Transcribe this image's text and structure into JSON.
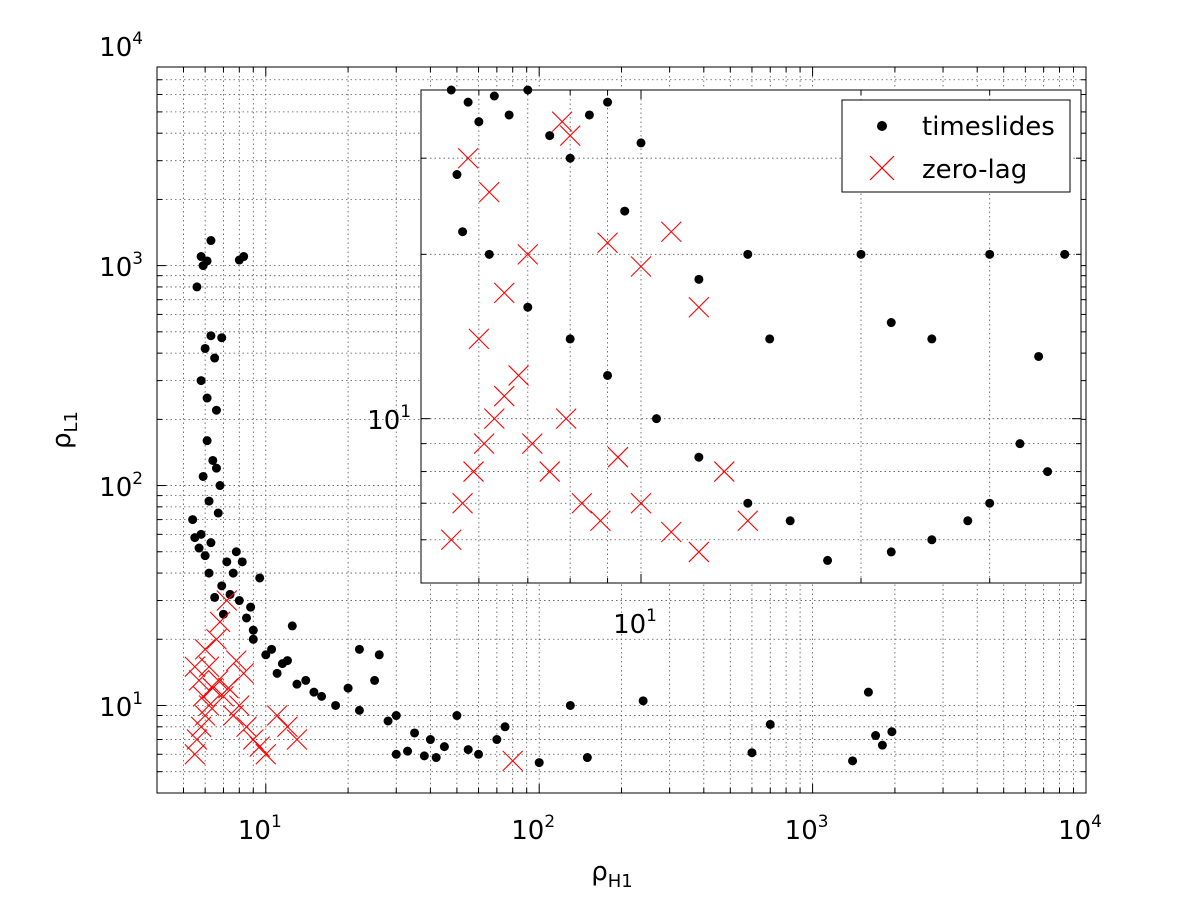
{
  "chart_data": [
    {
      "type": "scatter",
      "name": "main",
      "xscale": "log",
      "yscale": "log",
      "xlim": [
        4,
        10000
      ],
      "ylim": [
        4,
        8000
      ],
      "xlabel": {
        "base": "ρ",
        "sub": "H1"
      },
      "ylabel": {
        "base": "ρ",
        "sub": "L1"
      },
      "grid": true,
      "xticks": [
        {
          "base": "10",
          "exp": "1",
          "value": 10
        },
        {
          "base": "10",
          "exp": "2",
          "value": 100
        },
        {
          "base": "10",
          "exp": "3",
          "value": 1000
        },
        {
          "base": "10",
          "exp": "4",
          "value": 10000
        }
      ],
      "yticks": [
        {
          "base": "10",
          "exp": "1",
          "value": 10
        },
        {
          "base": "10",
          "exp": "2",
          "value": 100
        },
        {
          "base": "10",
          "exp": "3",
          "value": 1000
        },
        {
          "base": "10",
          "exp": "4",
          "value": 10000
        }
      ],
      "series": [
        {
          "name": "timeslides",
          "marker": "dot",
          "color": "#000000",
          "points": [
            [
              5.6,
              800
            ],
            [
              5.8,
              1100
            ],
            [
              5.9,
              1000
            ],
            [
              6.3,
              1300
            ],
            [
              6.1,
              1050
            ],
            [
              8.0,
              1060
            ],
            [
              8.3,
              1100
            ],
            [
              6.0,
              420
            ],
            [
              6.3,
              480
            ],
            [
              6.9,
              470
            ],
            [
              6.5,
              380
            ],
            [
              5.8,
              300
            ],
            [
              6.1,
              250
            ],
            [
              6.6,
              220
            ],
            [
              6.1,
              160
            ],
            [
              6.4,
              130
            ],
            [
              6.6,
              120
            ],
            [
              5.9,
              110
            ],
            [
              6.8,
              100
            ],
            [
              6.2,
              85
            ],
            [
              6.7,
              75
            ],
            [
              5.8,
              60
            ],
            [
              6.3,
              55
            ],
            [
              7.2,
              45
            ],
            [
              7.6,
              40
            ],
            [
              6.9,
              35
            ],
            [
              8.0,
              30
            ],
            [
              8.5,
              25
            ],
            [
              9.0,
              22
            ],
            [
              10.5,
              18
            ],
            [
              12.0,
              16
            ],
            [
              14.0,
              13
            ],
            [
              16.0,
              11
            ],
            [
              20.0,
              12
            ],
            [
              25.0,
              13
            ],
            [
              30.0,
              9
            ],
            [
              22.0,
              18
            ],
            [
              26.0,
              17
            ],
            [
              12.5,
              23
            ],
            [
              9.5,
              38
            ],
            [
              8.2,
              45
            ],
            [
              7.8,
              50
            ],
            [
              11.0,
              14
            ],
            [
              13.0,
              12.5
            ],
            [
              15.0,
              11.5
            ],
            [
              18.0,
              10
            ],
            [
              22.0,
              9.5
            ],
            [
              28.0,
              8.5
            ],
            [
              35.0,
              7.5
            ],
            [
              40.0,
              7.0
            ],
            [
              45.0,
              6.5
            ],
            [
              55.0,
              6.3
            ],
            [
              60.0,
              6.0
            ],
            [
              70.0,
              7.0
            ],
            [
              50.0,
              9.0
            ],
            [
              75.0,
              8.0
            ],
            [
              100.0,
              5.5
            ],
            [
              130.0,
              10.0
            ],
            [
              150.0,
              5.8
            ],
            [
              240.0,
              10.5
            ],
            [
              600.0,
              6.1
            ],
            [
              700.0,
              8.2
            ],
            [
              1400.0,
              5.6
            ],
            [
              1600.0,
              11.5
            ],
            [
              1700.0,
              7.3
            ],
            [
              1800.0,
              6.6
            ],
            [
              1950.0,
              7.6
            ],
            [
              30.0,
              6.0
            ],
            [
              33.0,
              6.2
            ],
            [
              38.0,
              5.9
            ],
            [
              42.0,
              5.8
            ],
            [
              9.0,
              20.0
            ],
            [
              10.0,
              17.0
            ],
            [
              11.5,
              15.5
            ],
            [
              8.8,
              28.0
            ],
            [
              7.4,
              32.0
            ],
            [
              7.0,
              26.0
            ],
            [
              6.5,
              31.0
            ],
            [
              6.2,
              40.0
            ],
            [
              6.0,
              48.0
            ],
            [
              5.7,
              52.0
            ],
            [
              5.5,
              58.0
            ],
            [
              5.4,
              70.0
            ]
          ]
        },
        {
          "name": "zero-lag",
          "marker": "x",
          "color": "#ff0000",
          "points": [
            [
              5.5,
              6
            ],
            [
              5.6,
              7
            ],
            [
              5.8,
              8
            ],
            [
              6.0,
              9
            ],
            [
              6.2,
              10
            ],
            [
              5.9,
              11
            ],
            [
              6.4,
              12
            ],
            [
              6.7,
              13
            ],
            [
              7.0,
              11
            ],
            [
              7.3,
              12
            ],
            [
              7.6,
              9
            ],
            [
              8.0,
              10
            ],
            [
              8.5,
              8
            ],
            [
              9.0,
              7
            ],
            [
              9.5,
              6.5
            ],
            [
              10.0,
              6
            ],
            [
              6.2,
              15
            ],
            [
              6.0,
              18
            ],
            [
              6.6,
              20
            ],
            [
              6.8,
              24
            ],
            [
              7.2,
              30
            ],
            [
              5.7,
              13
            ],
            [
              5.5,
              15
            ],
            [
              11.0,
              9
            ],
            [
              12.0,
              8
            ],
            [
              13.0,
              7
            ],
            [
              7.8,
              16
            ],
            [
              8.3,
              14
            ],
            [
              80.0,
              5.6
            ]
          ]
        }
      ],
      "legend": {
        "position": "top-right",
        "entries": [
          "timeslides",
          "zero-lag"
        ]
      }
    },
    {
      "type": "scatter",
      "name": "inset",
      "xscale": "log",
      "yscale": "log",
      "xlim": [
        5,
        40
      ],
      "ylim": [
        5,
        40
      ],
      "grid": true,
      "xticks": [
        {
          "base": "10",
          "exp": "1",
          "value": 10
        }
      ],
      "yticks": [
        {
          "base": "10",
          "exp": "1",
          "value": 10
        }
      ],
      "series": [
        {
          "name": "timeslides",
          "marker": "dot",
          "color": "#000000",
          "points": [
            [
              5.5,
              40
            ],
            [
              5.8,
              38
            ],
            [
              6.0,
              35
            ],
            [
              6.3,
              39
            ],
            [
              6.6,
              36
            ],
            [
              7.0,
              40
            ],
            [
              7.5,
              33
            ],
            [
              8.5,
              36
            ],
            [
              9.0,
              38
            ],
            [
              8.0,
              30
            ],
            [
              9.5,
              24
            ],
            [
              10.0,
              32
            ],
            [
              12.0,
              18
            ],
            [
              14.0,
              20
            ],
            [
              15.0,
              14
            ],
            [
              20.0,
              20
            ],
            [
              22.0,
              15
            ],
            [
              25.0,
              14
            ],
            [
              30.0,
              20
            ],
            [
              35.0,
              13
            ],
            [
              38.0,
              20
            ],
            [
              33.0,
              9
            ],
            [
              36.0,
              8
            ],
            [
              30.0,
              7
            ],
            [
              28.0,
              6.5
            ],
            [
              25.0,
              6
            ],
            [
              22.0,
              5.7
            ],
            [
              18.0,
              5.5
            ],
            [
              16.0,
              6.5
            ],
            [
              14.0,
              7
            ],
            [
              12.0,
              8.5
            ],
            [
              10.5,
              10
            ],
            [
              9.0,
              12
            ],
            [
              8.0,
              14
            ],
            [
              7.0,
              16
            ],
            [
              6.2,
              20
            ],
            [
              5.7,
              22
            ],
            [
              5.6,
              28
            ]
          ]
        },
        {
          "name": "zero-lag",
          "marker": "x",
          "color": "#ff0000",
          "points": [
            [
              5.5,
              6
            ],
            [
              5.7,
              7
            ],
            [
              5.9,
              8
            ],
            [
              6.1,
              9
            ],
            [
              6.3,
              10
            ],
            [
              6.5,
              11
            ],
            [
              6.8,
              12
            ],
            [
              7.1,
              9
            ],
            [
              7.5,
              8
            ],
            [
              7.9,
              10
            ],
            [
              8.3,
              7
            ],
            [
              8.8,
              6.5
            ],
            [
              9.3,
              8.5
            ],
            [
              10.0,
              7
            ],
            [
              11.0,
              6.2
            ],
            [
              12.0,
              5.7
            ],
            [
              13.0,
              8
            ],
            [
              14.0,
              6.5
            ],
            [
              6.0,
              14
            ],
            [
              6.5,
              17
            ],
            [
              7.0,
              20
            ],
            [
              6.2,
              26
            ],
            [
              5.8,
              30
            ],
            [
              7.8,
              35
            ],
            [
              8.0,
              33
            ],
            [
              9.0,
              21
            ],
            [
              10.0,
              19
            ],
            [
              11.0,
              22
            ],
            [
              12.0,
              16
            ]
          ]
        }
      ]
    }
  ],
  "legend": {
    "items": [
      {
        "label": "timeslides",
        "marker": "dot",
        "color": "#000000"
      },
      {
        "label": "zero-lag",
        "marker": "x",
        "color": "#ff0000"
      }
    ]
  }
}
